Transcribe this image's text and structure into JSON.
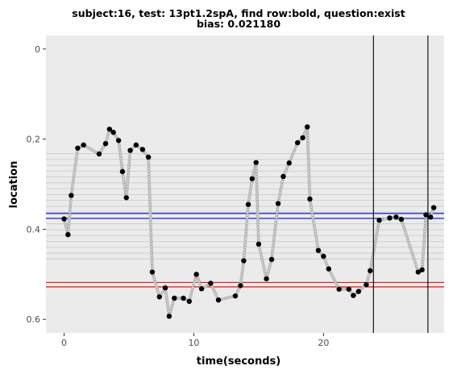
{
  "chart_data": {
    "type": "scatter",
    "title_lines": [
      "subject:16, test: 13pt1.2spA, find row:bold, question:exist",
      "bias: 0.021180"
    ],
    "xlabel": "time(seconds)",
    "ylabel": "location",
    "xlim": [
      -1.4,
      29.3
    ],
    "ylim": [
      -0.03,
      0.63
    ],
    "y_reversed": true,
    "x_ticks": [
      0,
      10,
      20
    ],
    "y_ticks": [
      0,
      0.2,
      0.4,
      0.6
    ],
    "y_tick_labels": [
      "0",
      "0.2",
      "0.4",
      "0.6"
    ],
    "grid": false,
    "background": "#ebebeb",
    "row_lines": {
      "color": "#c8c8c8",
      "y": [
        0.232,
        0.245,
        0.258,
        0.271,
        0.284,
        0.297,
        0.31,
        0.323,
        0.336,
        0.349,
        0.362,
        0.375,
        0.388,
        0.401,
        0.414,
        0.427,
        0.44,
        0.453,
        0.466
      ]
    },
    "blue_lines": {
      "color": "#0000cc",
      "y": [
        0.365,
        0.376
      ]
    },
    "red_lines": {
      "color": "#dd0000",
      "y": [
        0.518,
        0.528
      ]
    },
    "vertical_lines": {
      "color": "#000000",
      "x": [
        23.85,
        28.05
      ]
    },
    "fixations": [
      [
        0.0,
        0.377
      ],
      [
        0.3,
        0.412
      ],
      [
        0.55,
        0.325
      ],
      [
        1.05,
        0.22
      ],
      [
        1.5,
        0.213
      ],
      [
        2.7,
        0.233
      ],
      [
        3.2,
        0.21
      ],
      [
        3.5,
        0.178
      ],
      [
        3.8,
        0.185
      ],
      [
        4.2,
        0.203
      ],
      [
        4.5,
        0.272
      ],
      [
        4.8,
        0.33
      ],
      [
        5.1,
        0.225
      ],
      [
        5.55,
        0.213
      ],
      [
        6.05,
        0.223
      ],
      [
        6.5,
        0.24
      ],
      [
        6.8,
        0.495
      ],
      [
        7.35,
        0.55
      ],
      [
        7.8,
        0.53
      ],
      [
        8.1,
        0.593
      ],
      [
        8.5,
        0.553
      ],
      [
        9.2,
        0.553
      ],
      [
        9.65,
        0.56
      ],
      [
        10.2,
        0.5
      ],
      [
        10.6,
        0.532
      ],
      [
        11.3,
        0.52
      ],
      [
        11.9,
        0.557
      ],
      [
        13.2,
        0.548
      ],
      [
        13.6,
        0.525
      ],
      [
        13.85,
        0.47
      ],
      [
        14.2,
        0.345
      ],
      [
        14.5,
        0.288
      ],
      [
        14.8,
        0.252
      ],
      [
        15.0,
        0.433
      ],
      [
        15.6,
        0.51
      ],
      [
        16.0,
        0.467
      ],
      [
        16.5,
        0.343
      ],
      [
        16.9,
        0.283
      ],
      [
        17.35,
        0.253
      ],
      [
        18.0,
        0.208
      ],
      [
        18.4,
        0.197
      ],
      [
        18.75,
        0.173
      ],
      [
        18.95,
        0.333
      ],
      [
        19.6,
        0.447
      ],
      [
        20.0,
        0.46
      ],
      [
        20.4,
        0.488
      ],
      [
        21.2,
        0.533
      ],
      [
        21.95,
        0.533
      ],
      [
        22.3,
        0.547
      ],
      [
        22.7,
        0.538
      ],
      [
        23.3,
        0.523
      ],
      [
        23.6,
        0.492
      ],
      [
        24.3,
        0.38
      ],
      [
        25.1,
        0.375
      ],
      [
        25.6,
        0.373
      ],
      [
        26.0,
        0.378
      ],
      [
        27.3,
        0.495
      ],
      [
        27.6,
        0.49
      ],
      [
        27.9,
        0.368
      ],
      [
        28.25,
        0.373
      ],
      [
        28.5,
        0.352
      ]
    ]
  }
}
